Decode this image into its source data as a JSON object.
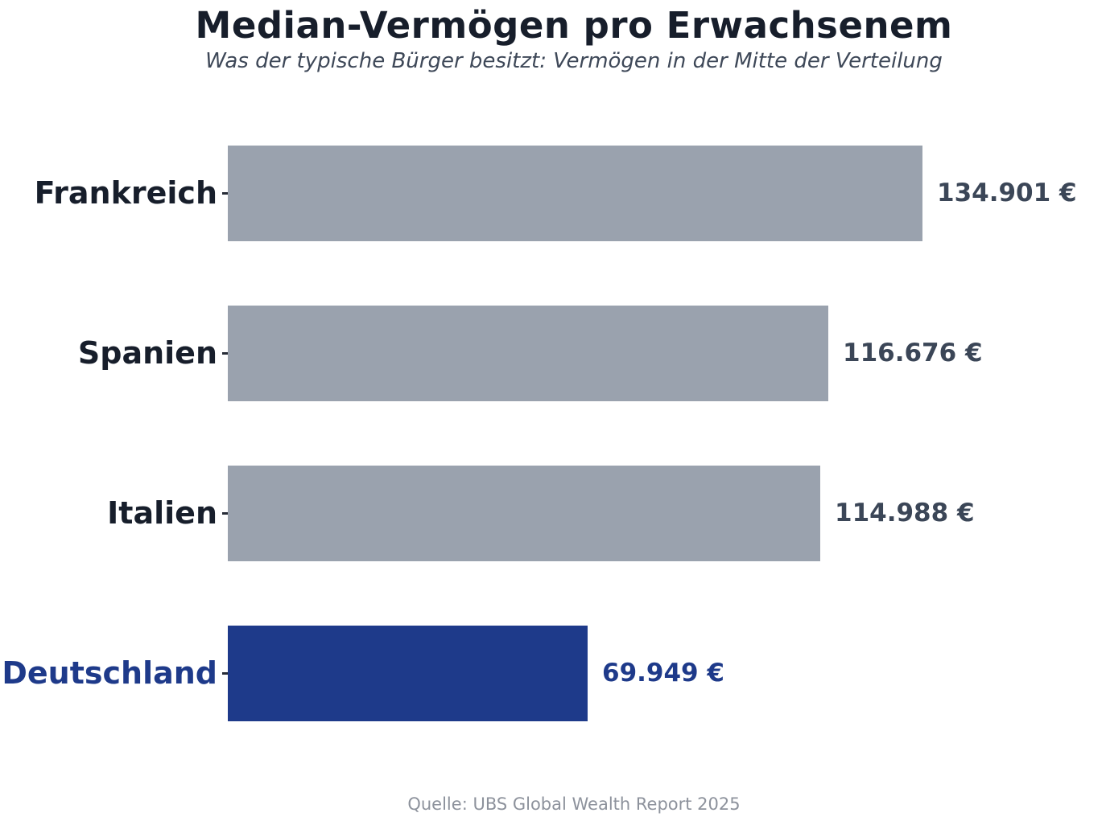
{
  "header": {
    "title": "Median-Vermögen pro Erwachsenem",
    "subtitle": "Was der typische Bürger besitzt: Vermögen in der Mitte der Verteilung"
  },
  "footer": {
    "source": "Quelle: UBS Global Wealth Report 2025"
  },
  "colors": {
    "default_bar": "#9aa2ae",
    "highlight_bar": "#1e3a8a",
    "title_text": "#171e2b",
    "subtitle_text": "#3e4858",
    "value_text": "#3b4657",
    "highlight_text": "#1e3a8a",
    "source_text": "#8d929c",
    "tick": "#262b36",
    "background": "#ffffff"
  },
  "chart_data": {
    "type": "bar",
    "orientation": "horizontal",
    "title": "Median-Vermögen pro Erwachsenem",
    "subtitle": "Was der typische Bürger besitzt: Vermögen in der Mitte der Verteilung",
    "source": "Quelle: UBS Global Wealth Report 2025",
    "categories": [
      "Frankreich",
      "Spanien",
      "Italien",
      "Deutschland"
    ],
    "values": [
      134901,
      116676,
      114988,
      69949
    ],
    "value_labels": [
      "134.901 €",
      "116.676 €",
      "114.988 €",
      "69.949 €"
    ],
    "unit": "EUR",
    "highlighted_category": "Deutschland",
    "xlim": [
      0,
      141646
    ],
    "grid": false,
    "legend": false,
    "axis_spines": false
  }
}
